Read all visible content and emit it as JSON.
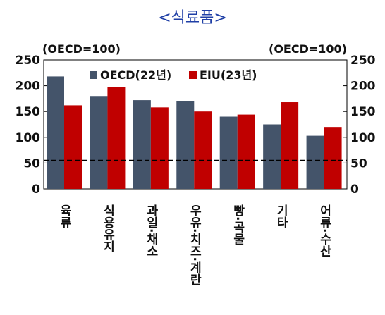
{
  "title": "<식료품>",
  "left_unit": "(OECD=100)",
  "right_unit": "(OECD=100)",
  "chart_data": {
    "type": "bar",
    "title": "<식료품>",
    "categories": [
      "육류",
      "식용유지",
      "과일·채소",
      "우유·치즈·계란",
      "빵·곡물",
      "기타",
      "어류·수산"
    ],
    "series": [
      {
        "name": "OECD(22년)",
        "values": [
          218,
          180,
          172,
          170,
          140,
          125,
          103
        ],
        "color": "#44546a"
      },
      {
        "name": "EIU(23년)",
        "values": [
          162,
          197,
          158,
          150,
          144,
          168,
          120
        ],
        "color": "#c00000"
      }
    ],
    "ylim": [
      0,
      250
    ],
    "yticks": [
      0,
      50,
      100,
      150,
      200,
      250
    ],
    "reference_line": {
      "value": 55,
      "style": "dashed",
      "color": "#000000"
    },
    "legend_position": "top-left",
    "grid": false
  }
}
